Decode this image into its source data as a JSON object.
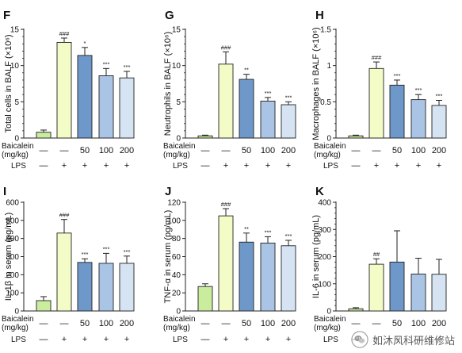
{
  "figure": {
    "colors": {
      "control": "#c9ec9d",
      "lps": "#f3fbc7",
      "b50": "#6e98c9",
      "b100": "#a9c4e4",
      "b200": "#d5e3f3",
      "stroke": "#222222"
    },
    "row_labels": {
      "baicalein_line1": "Baicalein",
      "baicalein_line2": "(mg/kg)",
      "lps": "LPS"
    },
    "baicalein_doses": [
      "—",
      "—",
      "50",
      "100",
      "200"
    ],
    "lps_marks": [
      "—",
      "+",
      "+",
      "+",
      "+"
    ],
    "watermark": {
      "text": "如沐风科研维修站",
      "icon": "wechat-logo-icon"
    }
  },
  "chart_data": [
    {
      "type": "bar",
      "panel": "F",
      "ylabel": "Total cells in BALF (×10⁶)",
      "ylim": [
        0,
        15
      ],
      "yticks": [
        0,
        5,
        10,
        15
      ],
      "minor_ticks": true,
      "categories": [
        "Control",
        "LPS",
        "LPS + Baicalein 50",
        "LPS + Baicalein 100",
        "LPS + Baicalein 200"
      ],
      "values": [
        0.8,
        13.2,
        11.4,
        8.6,
        8.3
      ],
      "errors": [
        0.3,
        0.6,
        1.1,
        1.0,
        0.9
      ],
      "significance": [
        "",
        "###",
        "*",
        "***",
        "***"
      ]
    },
    {
      "type": "bar",
      "panel": "G",
      "ylabel": "Neutrophils in BALF (×10⁶)",
      "ylim": [
        0,
        15
      ],
      "yticks": [
        0,
        5,
        10,
        15
      ],
      "minor_ticks": true,
      "categories": [
        "Control",
        "LPS",
        "LPS + Baicalein 50",
        "LPS + Baicalein 100",
        "LPS + Baicalein 200"
      ],
      "values": [
        0.3,
        10.2,
        8.1,
        5.1,
        4.6
      ],
      "errors": [
        0.1,
        1.7,
        0.7,
        0.5,
        0.4
      ],
      "significance": [
        "",
        "###",
        "**",
        "***",
        "***"
      ]
    },
    {
      "type": "bar",
      "panel": "H",
      "ylabel": "Macrophages in BALF (×10⁶)",
      "ylim": [
        0,
        1.5
      ],
      "yticks": [
        0,
        0.5,
        1.0,
        1.5
      ],
      "minor_ticks": true,
      "categories": [
        "Control",
        "LPS",
        "LPS + Baicalein 50",
        "LPS + Baicalein 100",
        "LPS + Baicalein 200"
      ],
      "values": [
        0.03,
        0.96,
        0.73,
        0.53,
        0.45
      ],
      "errors": [
        0.01,
        0.09,
        0.07,
        0.07,
        0.07
      ],
      "significance": [
        "",
        "###",
        "***",
        "***",
        "***"
      ]
    },
    {
      "type": "bar",
      "panel": "I",
      "ylabel": "IL-1β in serum (pg/mL)",
      "ylim": [
        0,
        600
      ],
      "yticks": [
        0,
        100,
        200,
        300,
        400,
        500,
        600
      ],
      "minor_ticks": false,
      "categories": [
        "Control",
        "LPS",
        "LPS + Baicalein 50",
        "LPS + Baicalein 100",
        "LPS + Baicalein 200"
      ],
      "values": [
        57,
        430,
        268,
        263,
        263
      ],
      "errors": [
        22,
        75,
        20,
        55,
        40
      ],
      "significance": [
        "",
        "###",
        "***",
        "***",
        "***"
      ]
    },
    {
      "type": "bar",
      "panel": "J",
      "ylabel": "TNF-α in serum (pg/mL)",
      "ylim": [
        0,
        120
      ],
      "yticks": [
        0,
        20,
        40,
        60,
        80,
        100,
        120
      ],
      "minor_ticks": false,
      "categories": [
        "Control",
        "LPS",
        "LPS + Baicalein 50",
        "LPS + Baicalein 100",
        "LPS + Baicalein 200"
      ],
      "values": [
        27,
        105,
        76,
        75,
        72
      ],
      "errors": [
        3,
        8,
        10,
        7,
        6
      ],
      "significance": [
        "",
        "###",
        "**",
        "***",
        "***"
      ]
    },
    {
      "type": "bar",
      "panel": "K",
      "ylabel": "IL-6 in serum (pg/mL)",
      "ylim": [
        0,
        400
      ],
      "yticks": [
        0,
        100,
        200,
        300,
        400
      ],
      "minor_ticks": true,
      "categories": [
        "Control",
        "LPS",
        "LPS + Baicalein 50",
        "LPS + Baicalein 100",
        "LPS + Baicalein 200"
      ],
      "values": [
        8,
        172,
        180,
        136,
        135
      ],
      "errors": [
        4,
        20,
        115,
        58,
        55
      ],
      "significance": [
        "",
        "##",
        "",
        "",
        ""
      ]
    }
  ]
}
